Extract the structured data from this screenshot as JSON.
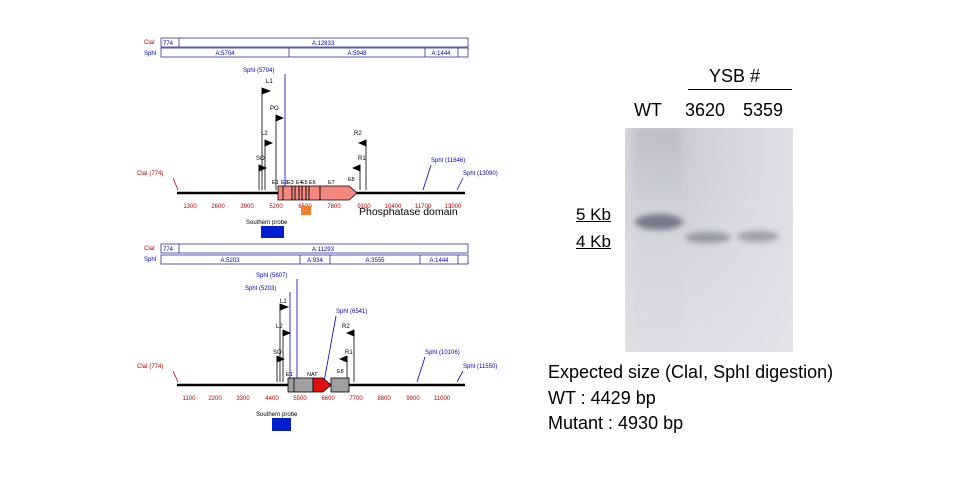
{
  "maps": [
    {
      "id": "wt",
      "clai_row": {
        "label": "ClaI",
        "first": "774",
        "segments": [
          "A:12833"
        ]
      },
      "sphi_row": {
        "label": "SphI",
        "segments": [
          "A:5704",
          "A:5948",
          "A:1444"
        ]
      },
      "ticks": [
        "1300",
        "2600",
        "3900",
        "5200",
        "6500",
        "7800",
        "9100",
        "10400",
        "11700",
        "13000"
      ],
      "sites": {
        "clai": "ClaI (774)",
        "sphi_a": "SphI (5704)",
        "sphi_b": "SphI (11646)",
        "sphi_c": "SphI (13090)"
      },
      "primers": [
        "L1",
        "PO",
        "L2",
        "SO",
        "R2",
        "R1"
      ],
      "exons": [
        "E1",
        "E2",
        "E3",
        "E4",
        "E5",
        "E6",
        "E7",
        "E8"
      ],
      "domain_label": "Phosphatase domain",
      "probe_label": "Southern probe"
    },
    {
      "id": "mut",
      "clai_row": {
        "label": "ClaI",
        "first": "774",
        "segments": [
          "A:11293"
        ]
      },
      "sphi_row": {
        "label": "SphI",
        "segments": [
          "A:5203",
          "A:934",
          "A:3555",
          "A:1444"
        ]
      },
      "ticks": [
        "1100",
        "2200",
        "3300",
        "4400",
        "5500",
        "6600",
        "7700",
        "8800",
        "9900",
        "11000"
      ],
      "sites": {
        "clai": "ClaI (774)",
        "sphi_a": "SphI (5607)",
        "sphi_b": "SphI (5203)",
        "sphi_c": "SphI (6541)",
        "sphi_d": "SphI (10106)",
        "sphi_e": "SphI (11550)"
      },
      "primers": [
        "L1",
        "L2",
        "SO",
        "R2",
        "R1"
      ],
      "exons": [
        "E1",
        "E8"
      ],
      "cassette_label": "NAT",
      "probe_label": "Southern probe"
    }
  ],
  "blot": {
    "group_label": "YSB #",
    "lanes": [
      "WT",
      "3620",
      "5359"
    ],
    "markers": [
      "5 Kb",
      "4 Kb"
    ]
  },
  "expected": {
    "title": "Expected size (ClaI, SphI digestion)",
    "wt": "WT : 4429 bp",
    "mutant": "Mutant : 4930 bp"
  },
  "colors": {
    "clai_text": "#c00000",
    "sphi_text": "#0000c0",
    "exon": "#f4877e",
    "probe": "#0020d0",
    "domain": "#f08030",
    "nat": "#e01010",
    "gray": "#a0a0a0"
  }
}
